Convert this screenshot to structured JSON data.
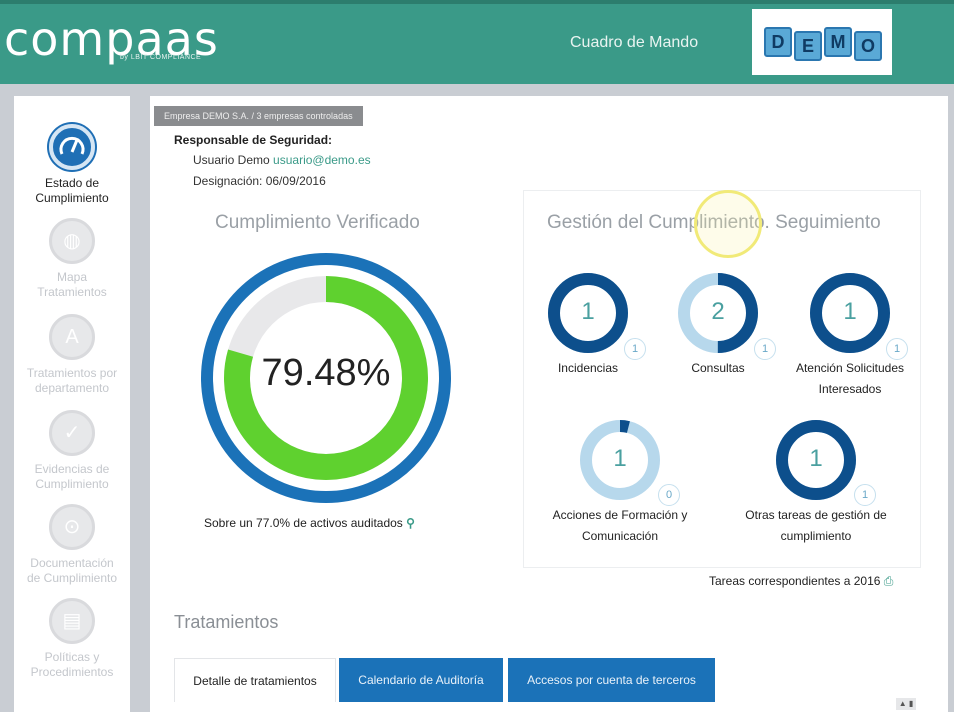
{
  "header": {
    "logo": "compaas",
    "logo_sub": "by LBIT COMPLIANCE",
    "title": "Cuadro de Mando",
    "demo_letters": [
      "D",
      "E",
      "M",
      "O"
    ]
  },
  "sidebar": {
    "items": [
      {
        "label_line1": "Estado de",
        "label_line2": "Cumplimiento",
        "icon": "gauge-icon",
        "active": true
      },
      {
        "label_line1": "Mapa",
        "label_line2": "Tratamientos",
        "icon": "globe-icon",
        "active": false
      },
      {
        "label_line1": "Tratamientos por",
        "label_line2": "departamento",
        "icon": "department-icon",
        "active": false
      },
      {
        "label_line1": "Evidencias de",
        "label_line2": "Cumplimiento",
        "icon": "checkmark-icon",
        "active": false
      },
      {
        "label_line1": "Documentación",
        "label_line2": "de Cumplimiento",
        "icon": "lock-icon",
        "active": false
      },
      {
        "label_line1": "Políticas y",
        "label_line2": "Procedimientos",
        "icon": "document-icon",
        "active": false
      }
    ]
  },
  "company": {
    "tag": "Empresa DEMO S.A. / 3 empresas controladas",
    "responsible_title": "Responsable de Seguridad:",
    "user_name": "Usuario Demo",
    "user_email": "usuario@demo.es",
    "designation": "Designación: 06/09/2016"
  },
  "compliance": {
    "title": "Cumplimiento Verificado",
    "percent_text": "79.48%",
    "percent_value": 79.48,
    "outer_ring_value": 100,
    "audited_text": "Sobre un 77.0% de activos auditados",
    "icon": "search-icon"
  },
  "tracking": {
    "title": "Gestión del Cumplimiento. Seguimiento",
    "items": [
      {
        "label_line1": "Incidencias",
        "label_line2": "",
        "count": "1",
        "badge": "1",
        "fill": 1.0
      },
      {
        "label_line1": "Consultas",
        "label_line2": "",
        "count": "2",
        "badge": "1",
        "fill": 0.5
      },
      {
        "label_line1": "Atención Solicitudes",
        "label_line2": "Interesados",
        "count": "1",
        "badge": "1",
        "fill": 1.0
      },
      {
        "label_line1": "Acciones de Formación y",
        "label_line2": "Comunicación",
        "count": "1",
        "badge": "0",
        "fill": 0.04
      },
      {
        "label_line1": "Otras tareas de gestión de",
        "label_line2": "cumplimiento",
        "count": "1",
        "badge": "1",
        "fill": 1.0
      }
    ],
    "footer": "Tareas correspondientes a 2016",
    "footer_icon": "print-icon"
  },
  "treatments": {
    "title": "Tratamientos",
    "tabs": [
      {
        "label": "Detalle de tratamientos",
        "active": true
      },
      {
        "label": "Calendario de Auditoría",
        "active": false
      },
      {
        "label": "Accesos por cuenta de terceros",
        "active": false
      }
    ]
  },
  "colors": {
    "header": "#3a9a88",
    "ring_blue": "#1b72b8",
    "ring_green": "#5fd12f",
    "track_dark": "#0d4f8c",
    "track_light": "#b7d8ec"
  }
}
